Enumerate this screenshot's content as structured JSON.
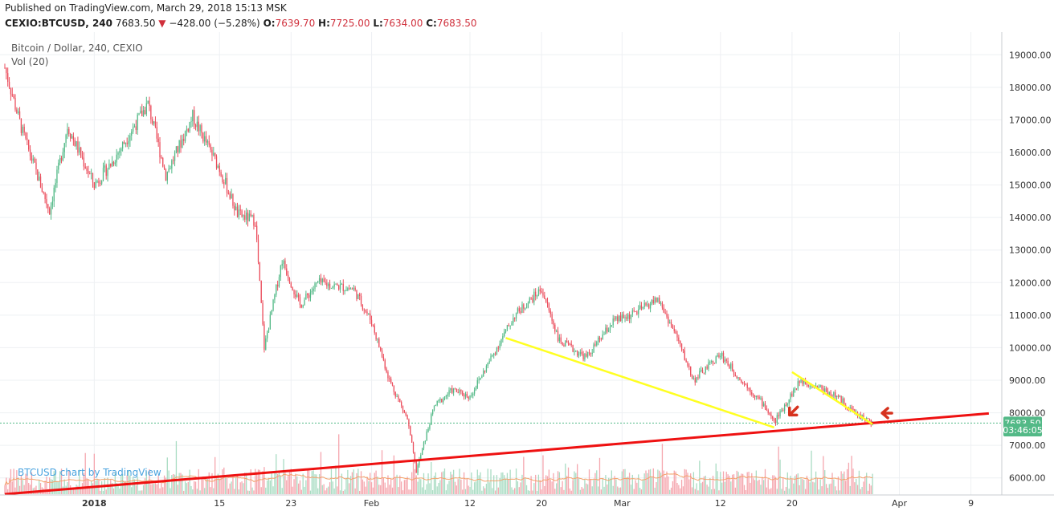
{
  "header": {
    "published": "Published on TradingView.com, March 29, 2018 15:13 MSK",
    "symbol": "CEXIO:BTCUSD, 240",
    "last": "7683.50",
    "change": "−428.00 (−5.28%)",
    "open_label": "O:",
    "open": "7639.70",
    "high_label": "H:",
    "high": "7725.00",
    "low_label": "L:",
    "low": "7634.00",
    "close_label": "C:",
    "close": "7683.50"
  },
  "legend": {
    "title": "Bitcoin / Dollar, 240, CEXIO",
    "volume": "Vol (20)",
    "watermark": "BTCUSD chart by TradingView"
  },
  "badges": {
    "price": "7683.50",
    "countdown": "03:46:05"
  },
  "colors": {
    "up": "#53b987",
    "down": "#eb4d5c",
    "vol_up": "#a9dcc3",
    "vol_down": "#f5a6ae",
    "trend_red": "#ee1111",
    "trend_yellow": "#ffff22",
    "ma_volume": "#f3a26b",
    "arrow": "#d6321e",
    "grid": "#eef0f3"
  },
  "chart_data": {
    "type": "candlestick",
    "title": "Bitcoin / Dollar, 240, CEXIO",
    "ylim": [
      5500,
      19500
    ],
    "y_ticks": [
      6000,
      7000,
      8000,
      9000,
      10000,
      11000,
      12000,
      13000,
      14000,
      15000,
      16000,
      17000,
      18000,
      19000
    ],
    "y_tick_labels": [
      "6000.00",
      "7000.00",
      "8000.00",
      "9000.00",
      "10000.00",
      "11000.00",
      "12000.00",
      "13000.00",
      "14000.00",
      "15000.00",
      "16000.00",
      "17000.00",
      "18000.00",
      "19000.00"
    ],
    "x_ticks": [
      "2018-01-01",
      "2018-01-15",
      "2018-01-23",
      "2018-02-01",
      "2018-02-12",
      "2018-02-20",
      "2018-03-01",
      "2018-03-12",
      "2018-03-20",
      "2018-04-01",
      "2018-04-09"
    ],
    "x_tick_labels": [
      "2018",
      "15",
      "23",
      "Feb",
      "12",
      "20",
      "Mar",
      "12",
      "20",
      "Apr",
      "9"
    ],
    "x_range": [
      "2017-12-22",
      "2018-04-12"
    ],
    "key_points": [
      {
        "date": "2017-12-22",
        "price": 18600
      },
      {
        "date": "2017-12-24",
        "price": 16600
      },
      {
        "date": "2017-12-27",
        "price": 14200
      },
      {
        "date": "2017-12-29",
        "price": 16800
      },
      {
        "date": "2018-01-01",
        "price": 15000
      },
      {
        "date": "2018-01-03",
        "price": 15700
      },
      {
        "date": "2018-01-07",
        "price": 17500
      },
      {
        "date": "2018-01-09",
        "price": 15300
      },
      {
        "date": "2018-01-12",
        "price": 17100
      },
      {
        "date": "2018-01-15",
        "price": 15500
      },
      {
        "date": "2018-01-17",
        "price": 14100
      },
      {
        "date": "2018-01-19",
        "price": 13900
      },
      {
        "date": "2018-01-20",
        "price": 10000
      },
      {
        "date": "2018-01-22",
        "price": 12700
      },
      {
        "date": "2018-01-24",
        "price": 11300
      },
      {
        "date": "2018-01-26",
        "price": 12000
      },
      {
        "date": "2018-01-30",
        "price": 11800
      },
      {
        "date": "2018-02-01",
        "price": 10800
      },
      {
        "date": "2018-02-03",
        "price": 9000
      },
      {
        "date": "2018-02-05",
        "price": 7800
      },
      {
        "date": "2018-02-06",
        "price": 6200
      },
      {
        "date": "2018-02-08",
        "price": 8200
      },
      {
        "date": "2018-02-10",
        "price": 8700
      },
      {
        "date": "2018-02-12",
        "price": 8500
      },
      {
        "date": "2018-02-15",
        "price": 10000
      },
      {
        "date": "2018-02-17",
        "price": 11000
      },
      {
        "date": "2018-02-20",
        "price": 11800
      },
      {
        "date": "2018-02-22",
        "price": 10200
      },
      {
        "date": "2018-02-25",
        "price": 9700
      },
      {
        "date": "2018-02-28",
        "price": 10800
      },
      {
        "date": "2018-03-02",
        "price": 11000
      },
      {
        "date": "2018-03-05",
        "price": 11500
      },
      {
        "date": "2018-03-07",
        "price": 10400
      },
      {
        "date": "2018-03-09",
        "price": 9000
      },
      {
        "date": "2018-03-12",
        "price": 9800
      },
      {
        "date": "2018-03-14",
        "price": 9100
      },
      {
        "date": "2018-03-17",
        "price": 8200
      },
      {
        "date": "2018-03-18",
        "price": 7700
      },
      {
        "date": "2018-03-20",
        "price": 8600
      },
      {
        "date": "2018-03-21",
        "price": 9000
      },
      {
        "date": "2018-03-23",
        "price": 8800
      },
      {
        "date": "2018-03-25",
        "price": 8500
      },
      {
        "date": "2018-03-27",
        "price": 8000
      },
      {
        "date": "2018-03-29",
        "price": 7683.5
      }
    ],
    "last_price": 7683.5,
    "trendlines": [
      {
        "color": "red",
        "from": {
          "date": "2017-12-22",
          "price": 5500
        },
        "to": {
          "date": "2018-04-11",
          "price": 7980
        }
      },
      {
        "color": "yellow",
        "from": {
          "date": "2018-02-16",
          "price": 10300
        },
        "to": {
          "date": "2018-03-18",
          "price": 7550
        }
      },
      {
        "color": "yellow",
        "from": {
          "date": "2018-03-20",
          "price": 9250
        },
        "to": {
          "date": "2018-03-29",
          "price": 7650
        }
      }
    ],
    "volume_indicator": "Vol (20)"
  }
}
